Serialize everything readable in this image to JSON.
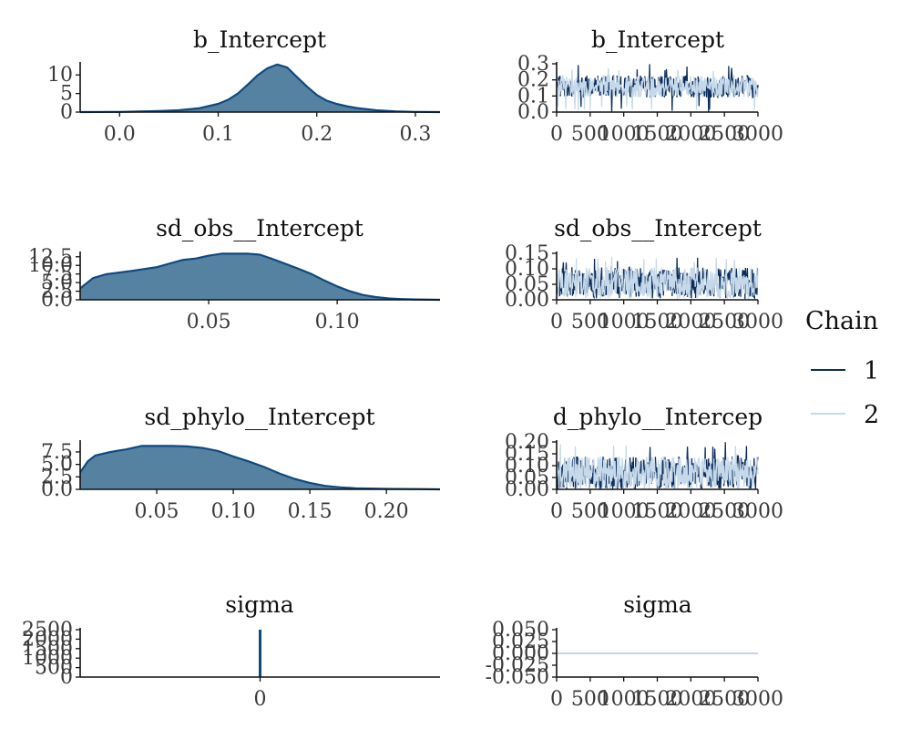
{
  "chart_data": [
    {
      "type": "area",
      "title": "b_Intercept",
      "xlim": [
        -0.04,
        0.325
      ],
      "ylim": [
        0,
        13
      ],
      "x_ticks": [
        0.0,
        0.1,
        0.2,
        0.3
      ],
      "x_tick_labels": [
        "0.0",
        "0.1",
        "0.2",
        "0.3"
      ],
      "y_ticks": [
        0,
        5,
        10
      ],
      "y_tick_labels": [
        "0",
        "5",
        "10"
      ],
      "x": [
        -0.04,
        0.0,
        0.02,
        0.04,
        0.06,
        0.08,
        0.1,
        0.11,
        0.12,
        0.13,
        0.14,
        0.15,
        0.16,
        0.17,
        0.18,
        0.19,
        0.2,
        0.21,
        0.22,
        0.23,
        0.24,
        0.26,
        0.28,
        0.3,
        0.325
      ],
      "y": [
        0.0,
        0.05,
        0.15,
        0.3,
        0.5,
        1.0,
        2.2,
        3.3,
        5.0,
        7.4,
        9.9,
        11.8,
        12.8,
        12.0,
        9.4,
        6.9,
        4.6,
        3.1,
        2.2,
        1.6,
        1.1,
        0.5,
        0.2,
        0.05,
        0.0
      ],
      "fill": "#5582a1",
      "line": "#0f4a7e"
    },
    {
      "type": "line",
      "title": "b_Intercept",
      "xlim": [
        0,
        3000
      ],
      "ylim": [
        0,
        0.3
      ],
      "x_ticks": [
        0,
        500,
        1000,
        1500,
        2000,
        2500,
        3000
      ],
      "x_tick_labels": [
        "0",
        "500",
        "1000",
        "1500",
        "2000",
        "2500",
        "3000"
      ],
      "y_ticks": [
        0.0,
        0.1,
        0.2,
        0.3
      ],
      "y_tick_labels": [
        "0.0",
        "0.1",
        "0.2",
        "0.3"
      ],
      "series": [
        {
          "name": "1",
          "color": "#0d2e5c",
          "center": 0.16,
          "spread": 0.07,
          "lo": 0.0,
          "hi": 0.3
        },
        {
          "name": "2",
          "color": "#c6d9ea",
          "center": 0.16,
          "spread": 0.07,
          "lo": 0.0,
          "hi": 0.3
        }
      ]
    },
    {
      "type": "area",
      "title": "sd_obs__Intercept",
      "xlim": [
        0.0,
        0.14
      ],
      "ylim": [
        0,
        13.5
      ],
      "x_ticks": [
        0.05,
        0.1
      ],
      "x_tick_labels": [
        "0.05",
        "0.10"
      ],
      "y_ticks": [
        0.0,
        2.5,
        5.0,
        7.5,
        10.0,
        12.5
      ],
      "y_tick_labels": [
        "0.0",
        "2.5",
        "5.0",
        "7.5",
        "10.0",
        "12.5"
      ],
      "x": [
        0.0,
        0.005,
        0.01,
        0.02,
        0.03,
        0.035,
        0.04,
        0.045,
        0.05,
        0.055,
        0.06,
        0.065,
        0.07,
        0.075,
        0.08,
        0.085,
        0.09,
        0.095,
        0.1,
        0.105,
        0.11,
        0.115,
        0.12,
        0.125,
        0.13,
        0.14
      ],
      "y": [
        3.3,
        6.3,
        7.4,
        8.4,
        9.5,
        10.6,
        11.6,
        12.0,
        12.8,
        13.4,
        13.4,
        13.4,
        13.1,
        11.8,
        10.4,
        9.0,
        7.5,
        5.6,
        3.9,
        2.5,
        1.4,
        0.8,
        0.4,
        0.2,
        0.1,
        0.0
      ],
      "fill": "#5582a1",
      "line": "#0f4a7e"
    },
    {
      "type": "line",
      "title": "sd_obs__Intercept",
      "xlim": [
        0,
        3000
      ],
      "ylim": [
        0,
        0.15
      ],
      "x_ticks": [
        0,
        500,
        1000,
        1500,
        2000,
        2500,
        3000
      ],
      "x_tick_labels": [
        "0",
        "500",
        "1000",
        "1500",
        "2000",
        "2500",
        "3000"
      ],
      "y_ticks": [
        0.0,
        0.05,
        0.1,
        0.15
      ],
      "y_tick_labels": [
        "0.00",
        "0.05",
        "0.10",
        "0.15"
      ],
      "series": [
        {
          "name": "1",
          "color": "#0d2e5c",
          "center": 0.055,
          "spread": 0.05,
          "lo": 0.0,
          "hi": 0.14
        },
        {
          "name": "2",
          "color": "#c6d9ea",
          "center": 0.055,
          "spread": 0.05,
          "lo": 0.0,
          "hi": 0.14
        }
      ]
    },
    {
      "type": "area",
      "title": "sd_phylo__Intercept",
      "xlim": [
        0.0,
        0.235
      ],
      "ylim": [
        0,
        9.5
      ],
      "x_ticks": [
        0.05,
        0.1,
        0.15,
        0.2
      ],
      "x_tick_labels": [
        "0.05",
        "0.10",
        "0.15",
        "0.20"
      ],
      "y_ticks": [
        0.0,
        2.5,
        5.0,
        7.5
      ],
      "y_tick_labels": [
        "0.0",
        "2.5",
        "5.0",
        "7.5"
      ],
      "x": [
        0.0,
        0.005,
        0.01,
        0.02,
        0.03,
        0.04,
        0.05,
        0.06,
        0.07,
        0.08,
        0.09,
        0.1,
        0.11,
        0.12,
        0.13,
        0.14,
        0.15,
        0.16,
        0.17,
        0.18,
        0.2,
        0.22,
        0.235
      ],
      "y": [
        3.4,
        5.6,
        6.8,
        7.5,
        8.0,
        8.7,
        8.7,
        8.7,
        8.6,
        8.3,
        7.7,
        6.6,
        5.6,
        4.5,
        3.2,
        2.1,
        1.3,
        0.7,
        0.4,
        0.2,
        0.1,
        0.05,
        0.0
      ],
      "fill": "#5582a1",
      "line": "#0f4a7e"
    },
    {
      "type": "line",
      "title": "d_phylo__Intercep",
      "xlim": [
        0,
        3000
      ],
      "ylim": [
        0,
        0.2
      ],
      "x_ticks": [
        0,
        500,
        1000,
        1500,
        2000,
        2500,
        3000
      ],
      "x_tick_labels": [
        "0",
        "500",
        "1000",
        "1500",
        "2000",
        "2500",
        "3000"
      ],
      "y_ticks": [
        0.0,
        0.05,
        0.1,
        0.15,
        0.2
      ],
      "y_tick_labels": [
        "0.00",
        "0.05",
        "0.10",
        "0.15",
        "0.20"
      ],
      "series": [
        {
          "name": "1",
          "color": "#0d2e5c",
          "center": 0.07,
          "spread": 0.07,
          "lo": 0.0,
          "hi": 0.2
        },
        {
          "name": "2",
          "color": "#c6d9ea",
          "center": 0.07,
          "spread": 0.07,
          "lo": 0.0,
          "hi": 0.21
        }
      ]
    },
    {
      "type": "bar",
      "title": "sigma",
      "xlim": [
        -1,
        1
      ],
      "ylim": [
        0,
        2500
      ],
      "x_ticks": [
        0
      ],
      "x_tick_labels": [
        "0"
      ],
      "y_ticks": [
        0,
        500,
        1000,
        1500,
        2000,
        2500
      ],
      "y_tick_labels": [
        "0",
        "500",
        "1000",
        "1500",
        "2000",
        "2500"
      ],
      "x": [
        0
      ],
      "y": [
        2500
      ],
      "fill": "#5582a1",
      "line": "#0f4a7e"
    },
    {
      "type": "line",
      "title": "sigma",
      "xlim": [
        0,
        3000
      ],
      "ylim": [
        -0.05,
        0.05
      ],
      "x_ticks": [
        0,
        500,
        1000,
        1500,
        2000,
        2500,
        3000
      ],
      "x_tick_labels": [
        "0",
        "500",
        "1000",
        "1500",
        "2000",
        "2500",
        "3000"
      ],
      "y_ticks": [
        -0.05,
        -0.025,
        0.0,
        0.025,
        0.05
      ],
      "y_tick_labels": [
        "-0.050",
        "-0.025",
        "0.000",
        "0.025",
        "0.050"
      ],
      "series": [
        {
          "name": "1",
          "color": "#0d2e5c",
          "center": 0.0,
          "spread": 0.0,
          "lo": 0.0,
          "hi": 0.0
        },
        {
          "name": "2",
          "color": "#c6d9ea",
          "center": 0.0,
          "spread": 0.0,
          "lo": 0.0,
          "hi": 0.0
        }
      ]
    }
  ],
  "legend": {
    "title": "Chain",
    "entries": [
      {
        "label": "1",
        "color": "#0d2e5c"
      },
      {
        "label": "2",
        "color": "#c6d9ea"
      }
    ],
    "position": "right"
  }
}
